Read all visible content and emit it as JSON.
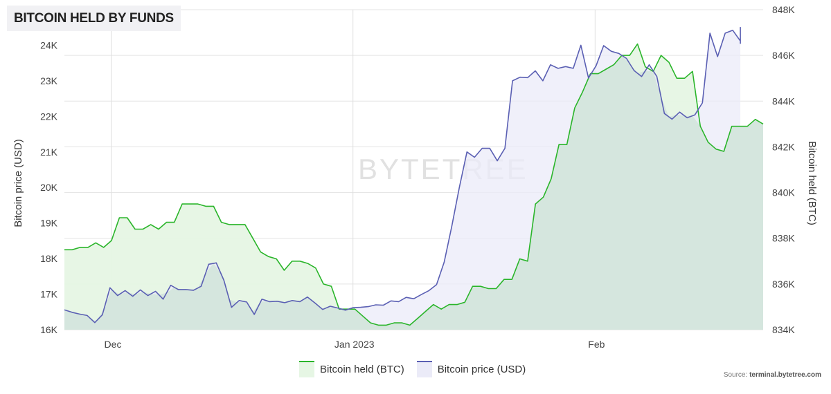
{
  "title": "BITCOIN HELD BY FUNDS",
  "watermark": "BYTETREE",
  "source_prefix": "Source: ",
  "source_site": "terminal.bytetree.com",
  "colors": {
    "held_line": "#2ab52a",
    "held_fill": "#e6f6e4",
    "price_line": "#5a5fb3",
    "price_fill": "#ebebf8",
    "overlap_fill": "#d5e6de"
  },
  "chart_data": {
    "type": "area",
    "x_tick_labels": [
      "Dec",
      "Jan 2023",
      "Feb"
    ],
    "left_axis": {
      "label": "Bitcoin price (USD)",
      "range": [
        16000,
        25000
      ],
      "ticks": [
        16000,
        17000,
        18000,
        19000,
        20000,
        21000,
        22000,
        23000,
        24000
      ],
      "tick_labels": [
        "16K",
        "17K",
        "18K",
        "19K",
        "20K",
        "21K",
        "22K",
        "23K",
        "24K"
      ]
    },
    "right_axis": {
      "label": "Bitcoin held (BTC)",
      "range": [
        834000,
        848000
      ],
      "ticks": [
        834000,
        836000,
        838000,
        840000,
        842000,
        844000,
        846000,
        848000
      ],
      "tick_labels": [
        "834K",
        "836K",
        "838K",
        "840K",
        "842K",
        "844K",
        "846K",
        "848K"
      ]
    },
    "grid": true,
    "legend_position": "bottom-center",
    "series": [
      {
        "name": "Bitcoin held (BTC)",
        "axis": "right",
        "values": [
          837.5,
          837.5,
          837.6,
          837.6,
          837.8,
          837.6,
          837.9,
          838.9,
          838.9,
          838.4,
          838.4,
          838.6,
          838.4,
          838.7,
          838.7,
          839.5,
          839.5,
          839.5,
          839.4,
          839.4,
          838.7,
          838.6,
          838.6,
          838.6,
          838.0,
          837.4,
          837.2,
          837.1,
          836.6,
          837.0,
          837.0,
          836.9,
          836.7,
          836.0,
          835.9,
          834.9,
          834.9,
          834.9,
          834.6,
          834.3,
          834.2,
          834.2,
          834.3,
          834.3,
          834.2,
          834.5,
          834.8,
          835.1,
          834.9,
          835.1,
          835.1,
          835.2,
          835.9,
          835.9,
          835.8,
          835.8,
          836.2,
          836.2,
          837.1,
          837.0,
          839.5,
          839.8,
          840.6,
          842.1,
          842.1,
          843.7,
          844.4,
          845.2,
          845.2,
          845.4,
          845.6,
          846.0,
          846.0,
          846.5,
          845.5,
          845.3,
          846.0,
          845.7,
          845.0,
          845.0,
          845.3,
          842.9,
          842.2,
          841.9,
          841.8,
          842.9,
          842.9,
          842.9,
          843.2,
          843.0
        ]
      },
      {
        "name": "Bitcoin price (USD)",
        "axis": "left",
        "values": [
          16560,
          16490,
          16440,
          16400,
          16200,
          16420,
          17180,
          16960,
          17100,
          16940,
          17120,
          16960,
          17080,
          16860,
          17250,
          17130,
          17130,
          17110,
          17220,
          17840,
          17880,
          17390,
          16630,
          16820,
          16780,
          16430,
          16860,
          16790,
          16800,
          16760,
          16820,
          16790,
          16920,
          16750,
          16570,
          16660,
          16610,
          16550,
          16620,
          16630,
          16650,
          16700,
          16690,
          16810,
          16790,
          16910,
          16870,
          16990,
          17100,
          17270,
          17900,
          18900,
          20000,
          21000,
          20850,
          21100,
          21100,
          20750,
          21100,
          23000,
          23100,
          23090,
          23280,
          23000,
          23450,
          23350,
          23400,
          23350,
          24000,
          23080,
          23420,
          23990,
          23830,
          23770,
          23630,
          23290,
          23120,
          23450,
          23120,
          22080,
          21920,
          22120,
          21960,
          22040,
          22380,
          24340,
          23680,
          24340,
          24420,
          24120,
          24500,
          24170,
          24040
        ]
      }
    ]
  }
}
